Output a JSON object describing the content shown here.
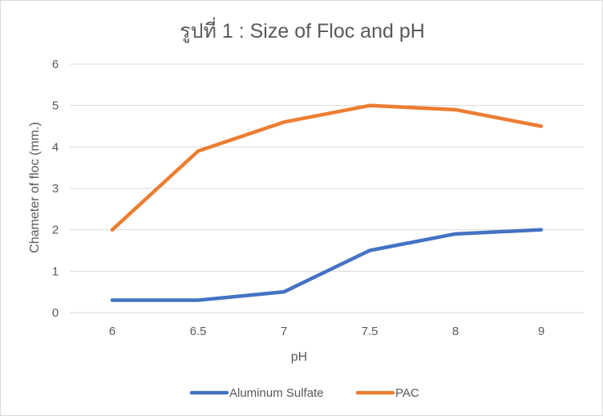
{
  "chart_data": {
    "type": "line",
    "title": "รูปที่ 1 : Size of Floc and pH",
    "xlabel": "pH",
    "ylabel": "Chameter of floc (mm.)",
    "categories": [
      "6",
      "6.5",
      "7",
      "7.5",
      "8",
      "9"
    ],
    "ylim": [
      0,
      6
    ],
    "yticks": [
      "0",
      "1",
      "2",
      "3",
      "4",
      "5",
      "6"
    ],
    "grid": "horizontal",
    "legend_position": "bottom",
    "series": [
      {
        "name": "Aluminum Sulfate",
        "color": "#4472c4",
        "values": [
          0.3,
          0.3,
          0.5,
          1.5,
          1.9,
          2.0
        ]
      },
      {
        "name": "PAC",
        "color": "#ed7d31",
        "values": [
          2.0,
          3.9,
          4.6,
          5.0,
          4.9,
          4.5
        ]
      }
    ]
  }
}
